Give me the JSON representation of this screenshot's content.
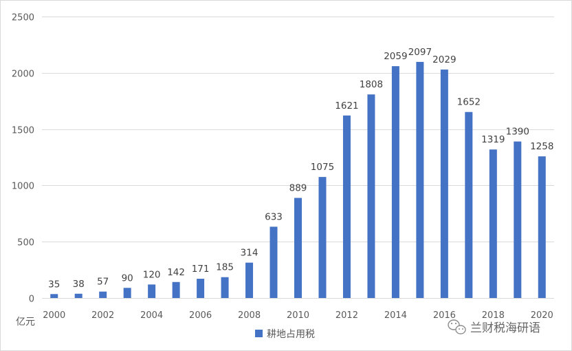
{
  "chart_data": {
    "type": "bar",
    "categories": [
      "2000",
      "2001",
      "2002",
      "2003",
      "2004",
      "2005",
      "2006",
      "2007",
      "2008",
      "2009",
      "2010",
      "2011",
      "2012",
      "2013",
      "2014",
      "2015",
      "2016",
      "2017",
      "2018",
      "2019",
      "2020"
    ],
    "x_tick_labels": [
      "2000",
      "2002",
      "2004",
      "2006",
      "2008",
      "2010",
      "2012",
      "2014",
      "2016",
      "2018",
      "2020"
    ],
    "series": [
      {
        "name": "耕地占用税",
        "color": "#4472C4",
        "values": [
          35,
          38,
          57,
          90,
          120,
          142,
          171,
          185,
          314,
          633,
          889,
          1075,
          1621,
          1808,
          2059,
          2097,
          2029,
          1652,
          1319,
          1390,
          1258
        ]
      }
    ],
    "ylim": [
      0,
      2500
    ],
    "yticks": [
      0,
      500,
      1000,
      1500,
      2000,
      2500
    ],
    "unit_label": "亿元",
    "grid": true,
    "legend": "bottom-center",
    "data_labels": true
  },
  "watermark": {
    "text": "兰财税海研语",
    "icon": "wechat-icon"
  }
}
